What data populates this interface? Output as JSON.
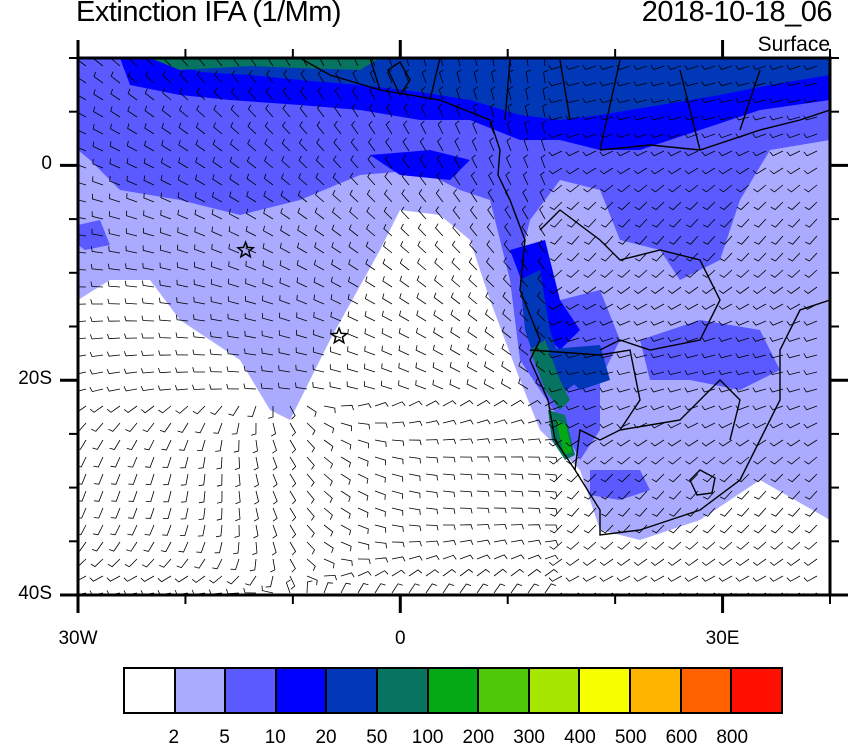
{
  "title": "Extinction IFA (1/Mm)",
  "date": "2018-10-18_06",
  "level": "Surface",
  "map": {
    "lon_range": [
      -30,
      40
    ],
    "lat_range": [
      -40,
      10
    ],
    "lon_ticks": [
      {
        "lon": -30,
        "label": "30W"
      },
      {
        "lon": 0,
        "label": "0"
      },
      {
        "lon": 30,
        "label": "30E"
      }
    ],
    "lat_ticks": [
      {
        "lat": 0,
        "label": "0"
      },
      {
        "lat": -20,
        "label": "20S"
      },
      {
        "lat": -40,
        "label": "40S"
      }
    ],
    "markers": [
      {
        "type": "star",
        "lon": -14.4,
        "lat": -7.9
      },
      {
        "type": "star",
        "lon": -5.7,
        "lat": -15.9
      }
    ],
    "overlay": "wind barbs"
  },
  "colorbar": {
    "colors": [
      "#ffffff",
      "#aaaaff",
      "#5a5aff",
      "#0000ff",
      "#0038b8",
      "#067460",
      "#05a815",
      "#50c80a",
      "#a6e600",
      "#f5ff00",
      "#ffb400",
      "#ff6000",
      "#ff1000"
    ],
    "labels": [
      "2",
      "5",
      "10",
      "20",
      "50",
      "100",
      "200",
      "300",
      "400",
      "500",
      "600",
      "800"
    ]
  }
}
